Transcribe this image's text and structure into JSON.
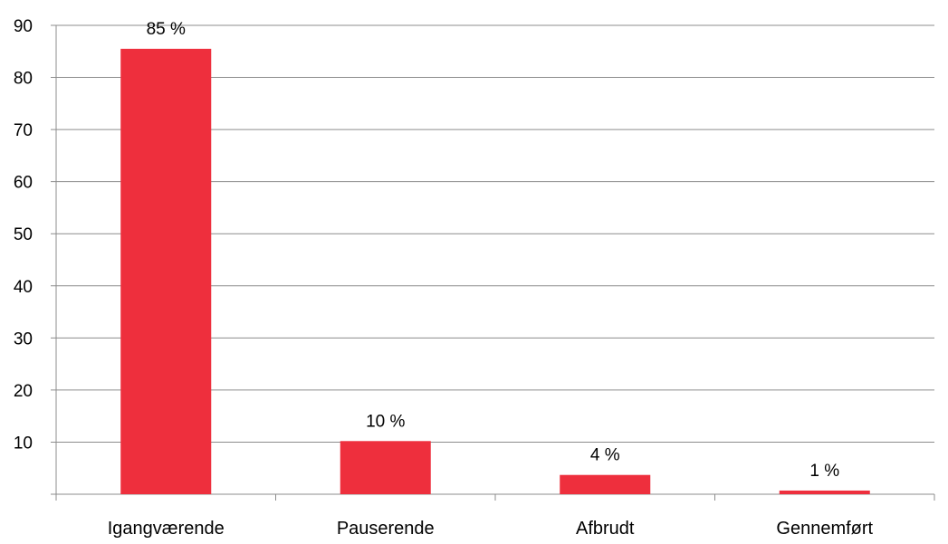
{
  "chart_data": {
    "type": "bar",
    "categories": [
      "Igangværende",
      "Pauserende",
      "Afbrudt",
      "Gennemført"
    ],
    "values": [
      85.5,
      10.2,
      3.7,
      0.7
    ],
    "data_labels": [
      "85 %",
      "10 %",
      "4 %",
      "1 %"
    ],
    "bar_color": "#ee2f3d",
    "gridline_color": "#8c8c8c",
    "yticks": [
      10,
      20,
      30,
      40,
      50,
      60,
      70,
      80,
      90
    ],
    "ylim": [
      0,
      90
    ],
    "grid": true,
    "legend": "none",
    "title": "",
    "xlabel": "",
    "ylabel": ""
  }
}
